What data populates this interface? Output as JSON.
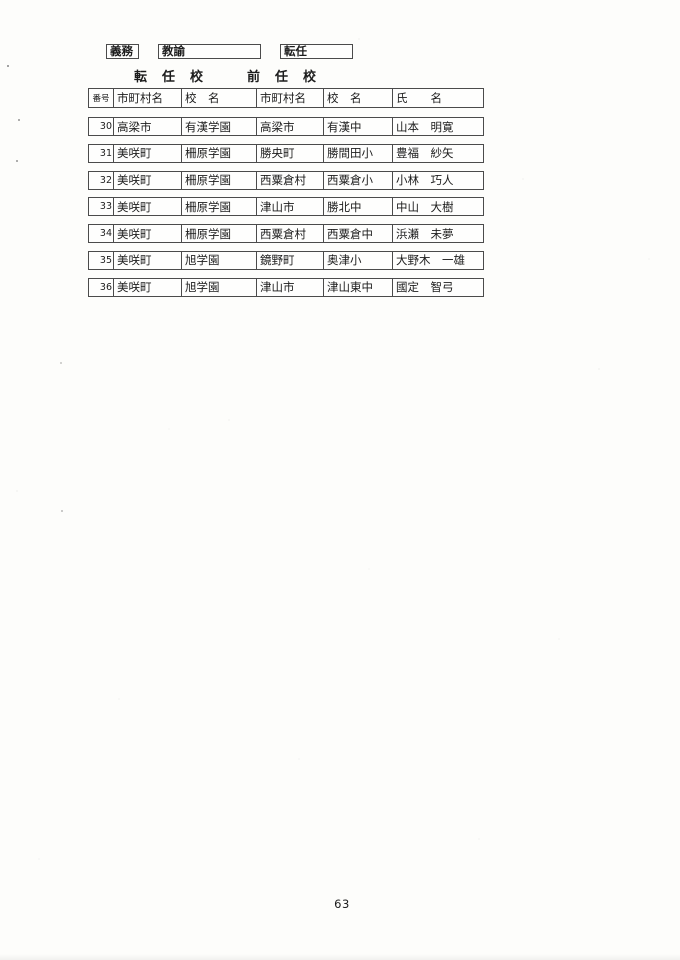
{
  "page": {
    "category_boxes": [
      {
        "label": "義務"
      },
      {
        "label": "教諭"
      },
      {
        "label": "転任"
      }
    ],
    "group_labels": {
      "new_school": "転　任　校",
      "prev_school": "前　任　校"
    },
    "page_number": "63"
  },
  "table": {
    "columns": [
      "番号",
      "市町村名",
      "校　名",
      "市町村名",
      "校　名",
      "氏　　名"
    ],
    "rows": [
      {
        "no": "30",
        "new_city": "高梁市",
        "new_school": "有漢学園",
        "prev_city": "高梁市",
        "prev_school": "有漢中",
        "name": "山本　明寛"
      },
      {
        "no": "31",
        "new_city": "美咲町",
        "new_school": "柵原学園",
        "prev_city": "勝央町",
        "prev_school": "勝間田小",
        "name": "豊福　紗矢"
      },
      {
        "no": "32",
        "new_city": "美咲町",
        "new_school": "柵原学園",
        "prev_city": "西粟倉村",
        "prev_school": "西粟倉小",
        "name": "小林　巧人"
      },
      {
        "no": "33",
        "new_city": "美咲町",
        "new_school": "柵原学園",
        "prev_city": "津山市",
        "prev_school": "勝北中",
        "name": "中山　大樹"
      },
      {
        "no": "34",
        "new_city": "美咲町",
        "new_school": "柵原学園",
        "prev_city": "西粟倉村",
        "prev_school": "西粟倉中",
        "name": "浜瀬　未夢"
      },
      {
        "no": "35",
        "new_city": "美咲町",
        "new_school": "旭学園",
        "prev_city": "鏡野町",
        "prev_school": "奥津小",
        "name": "大野木　一雄"
      },
      {
        "no": "36",
        "new_city": "美咲町",
        "new_school": "旭学園",
        "prev_city": "津山市",
        "prev_school": "津山東中",
        "name": "國定　智弓"
      }
    ]
  }
}
